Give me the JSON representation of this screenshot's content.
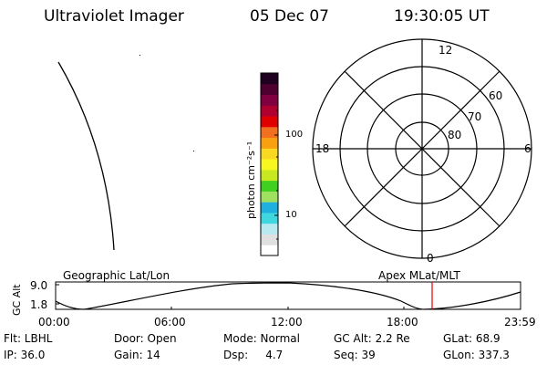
{
  "header": {
    "title": "Ultraviolet Imager",
    "date": "05 Dec 07",
    "time": "19:30:05 UT"
  },
  "colorbar": {
    "unit_label": "photon cm⁻²s⁻¹",
    "tick_100": "100",
    "tick_10": "10",
    "colors": [
      "#ffffff",
      "#e0e0e0",
      "#b8e8f0",
      "#40d8e0",
      "#20b0e0",
      "#a0e060",
      "#40d020",
      "#c8e820",
      "#f8f820",
      "#f8d820",
      "#f8a010",
      "#f07020",
      "#e00000",
      "#b00030",
      "#800040",
      "#500030",
      "#200020"
    ]
  },
  "polar_plot": {
    "mlt_labels": {
      "top": "12",
      "left": "18",
      "right": "6",
      "bottom": "0"
    },
    "lat_labels": {
      "outer": "60",
      "middle": "70",
      "inner": "80"
    }
  },
  "timeline": {
    "left_label": "Geographic Lat/Lon",
    "right_label": "Apex MLat/MLT",
    "y_axis_label": "GC Alt",
    "y_ticks": [
      "9.0",
      "1.8"
    ],
    "x_ticks": [
      "00:00",
      "06:00",
      "12:00",
      "18:00",
      "23:59"
    ],
    "marker_color": "#e00000"
  },
  "status": {
    "flt": "Flt: LBHL",
    "door": "Door: Open",
    "mode": "Mode: Normal",
    "gc_alt": "GC Alt: 2.2 Re",
    "glat": "GLat:  68.9",
    "ip": "IP: 36.0",
    "gain": "Gain: 14",
    "dsp": "Dsp:     4.7",
    "seq": "Seq: 39",
    "glon": "GLon: 337.3"
  }
}
